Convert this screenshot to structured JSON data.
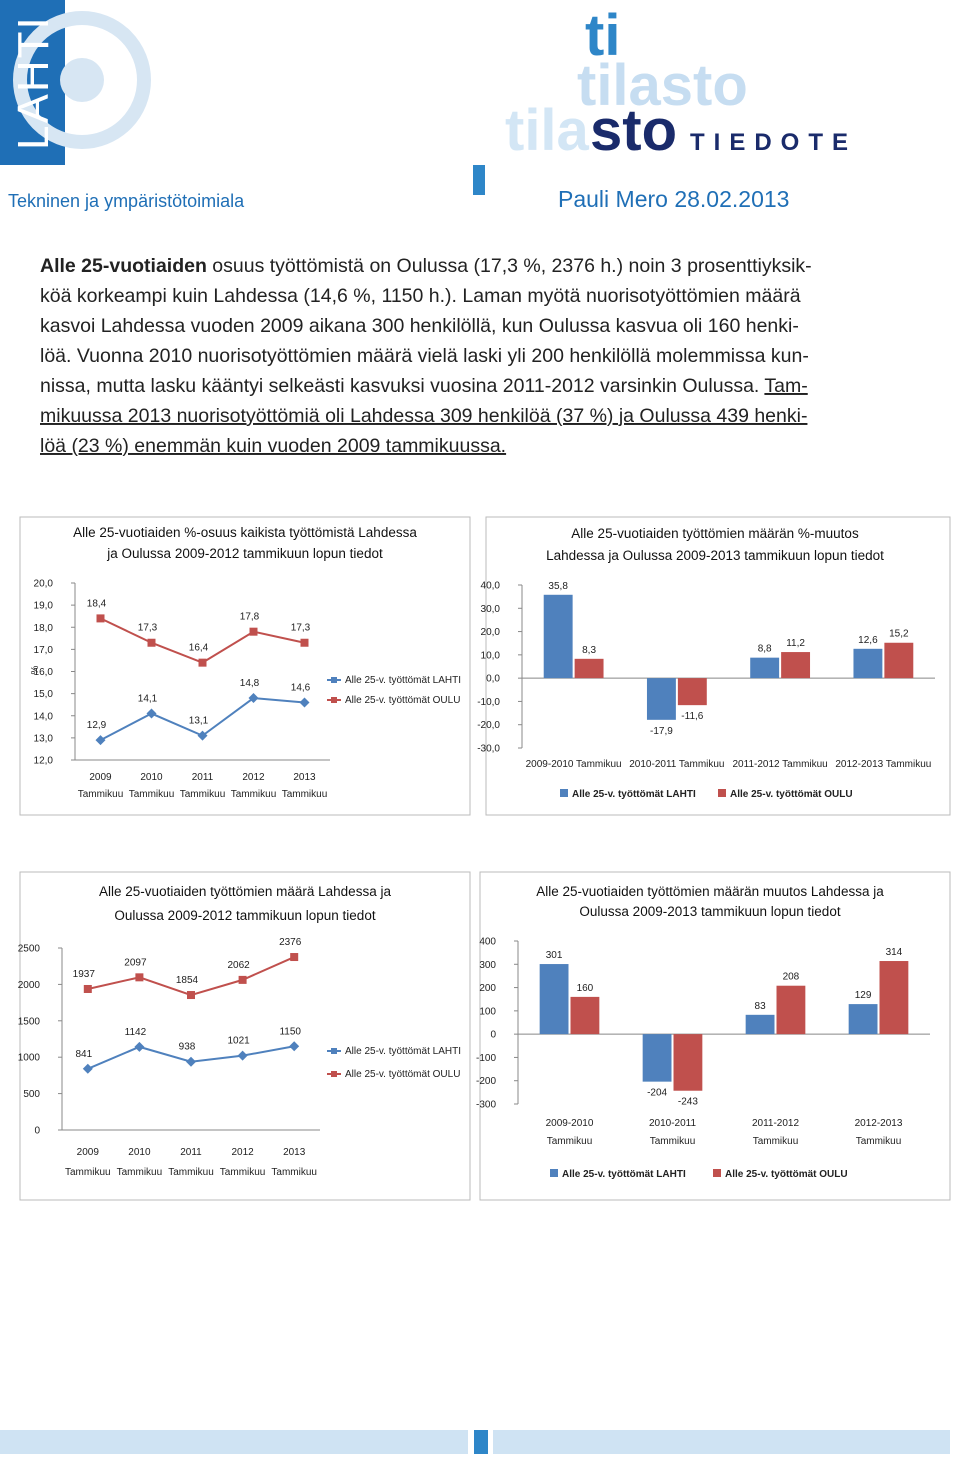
{
  "header": {
    "logo": "LAHTI",
    "brand_words": [
      "ti",
      "tilasto",
      "tila",
      "sto"
    ],
    "product": "TIEDOTE",
    "department": "Tekninen ja ympäristötoimiala",
    "author_date": "Pauli Mero 28.02.2013"
  },
  "body": {
    "lines": [
      [
        {
          "text": "Alle 25-vuotiaiden",
          "style": "bold"
        },
        {
          "text": " osuus työttömistä on Oulussa (17,3 %, 2376 h.) noin 3 prosenttiyksik-"
        }
      ],
      [
        {
          "text": "köä korkeampi kuin Lahdessa (14,6 %, 1150 h.). Laman myötä nuorisotyöttömien määrä"
        }
      ],
      [
        {
          "text": "kasvoi Lahdessa vuoden 2009 aikana 300 henkilöllä, kun Oulussa kasvua oli 160 henki-"
        }
      ],
      [
        {
          "text": "löä. Vuonna 2010 nuorisotyöttömien määrä vielä laski yli 200 henkilöllä molemmissa kun-"
        }
      ],
      [
        {
          "text": "nissa, mutta lasku kääntyi selkeästi kasvuksi vuosina 2011-2012 varsinkin Oulussa. "
        },
        {
          "text": "Tam-",
          "style": "underline"
        }
      ],
      [
        {
          "text": "mikuussa 2013 nuorisotyöttömiä oli Lahdessa 309 henkilöä (37 %) ja Oulussa 439 henki-",
          "style": "underline"
        }
      ],
      [
        {
          "text": "löä (23 %) enemmän kuin vuoden 2009 tammikuussa.",
          "style": "underline"
        }
      ]
    ]
  },
  "chart_data": [
    {
      "type": "line",
      "title": [
        "Alle 25-vuotiaiden %-osuus kaikista työttömistä Lahdessa",
        "ja Oulussa 2009-2012 tammikuun lopun tiedot"
      ],
      "ylabel": "%",
      "categories": [
        [
          "2009",
          "Tammikuu"
        ],
        [
          "2010",
          "Tammikuu"
        ],
        [
          "2011",
          "Tammikuu"
        ],
        [
          "2012",
          "Tammikuu"
        ],
        [
          "2013",
          "Tammikuu"
        ]
      ],
      "series": [
        {
          "name": "Alle 25-v. työttömät LAHTI",
          "color": "#4f81bd",
          "marker": "diamond",
          "values": [
            12.9,
            14.1,
            13.1,
            14.8,
            14.6
          ],
          "value_labels": [
            "12,9",
            "14,1",
            "13,1",
            "14,8",
            "14,6"
          ]
        },
        {
          "name": "Alle 25-v. työttömät OULU",
          "color": "#c0504d",
          "marker": "square",
          "values": [
            18.4,
            17.3,
            16.4,
            17.8,
            17.3
          ],
          "value_labels": [
            "18,4",
            "17,3",
            "16,4",
            "17,8",
            "17,3"
          ]
        }
      ],
      "ylim": [
        12,
        20
      ],
      "yticks": [
        {
          "value": 12,
          "label": "12,0"
        },
        {
          "value": 13,
          "label": "13,0"
        },
        {
          "value": 14,
          "label": "14,0"
        },
        {
          "value": 15,
          "label": "15,0"
        },
        {
          "value": 16,
          "label": "16,0"
        },
        {
          "value": 17,
          "label": "17,0"
        },
        {
          "value": 18,
          "label": "18,0"
        },
        {
          "value": 19,
          "label": "19,0"
        },
        {
          "value": 20,
          "label": "20,0"
        }
      ],
      "legend": "right",
      "grid": false
    },
    {
      "type": "bar",
      "title": [
        "Alle 25-vuotiaiden työttömien määrän %-muutos",
        "Lahdessa ja Oulussa 2009-2013 tammikuun lopun tiedot"
      ],
      "categories": [
        [
          "2009-2010 Tammikuu"
        ],
        [
          "2010-2011 Tammikuu"
        ],
        [
          "2011-2012 Tammikuu"
        ],
        [
          "2012-2013 Tammikuu"
        ]
      ],
      "series": [
        {
          "name": "Alle 25-v. työttömät LAHTI",
          "color": "#4f81bd",
          "values": [
            35.8,
            -17.9,
            8.8,
            12.6
          ],
          "value_labels": [
            "35,8",
            "-17,9",
            "8,8",
            "12,6"
          ]
        },
        {
          "name": "Alle 25-v. työttömät OULU",
          "color": "#c0504d",
          "values": [
            8.3,
            -11.6,
            11.2,
            15.2
          ],
          "value_labels": [
            "8,3",
            "-11,6",
            "11,2",
            "15,2"
          ]
        }
      ],
      "ylim": [
        -30,
        40
      ],
      "yticks": [
        {
          "value": -30,
          "label": "-30,0"
        },
        {
          "value": -20,
          "label": "-20,0"
        },
        {
          "value": -10,
          "label": "-10,0"
        },
        {
          "value": 0,
          "label": "0,0"
        },
        {
          "value": 10,
          "label": "10,0"
        },
        {
          "value": 20,
          "label": "20,0"
        },
        {
          "value": 30,
          "label": "30,0"
        },
        {
          "value": 40,
          "label": "40,0"
        }
      ],
      "legend": "bottom",
      "grid": false
    },
    {
      "type": "line",
      "title": [
        "Alle 25-vuotiaiden työttömien määrä Lahdessa ja",
        "Oulussa 2009-2012 tammikuun lopun tiedot"
      ],
      "categories": [
        [
          "2009",
          "Tammikuu"
        ],
        [
          "2010",
          "Tammikuu"
        ],
        [
          "2011",
          "Tammikuu"
        ],
        [
          "2012",
          "Tammikuu"
        ],
        [
          "2013",
          "Tammikuu"
        ]
      ],
      "series": [
        {
          "name": "Alle 25-v. työttömät LAHTI",
          "color": "#4f81bd",
          "marker": "diamond",
          "values": [
            841,
            1142,
            938,
            1021,
            1150
          ]
        },
        {
          "name": "Alle 25-v. työttömät OULU",
          "color": "#c0504d",
          "marker": "square",
          "values": [
            1937,
            2097,
            1854,
            2062,
            2376
          ]
        }
      ],
      "ylim": [
        0,
        2500
      ],
      "yticks": [
        0,
        500,
        1000,
        1500,
        2000,
        2500
      ],
      "legend": "right",
      "grid": false
    },
    {
      "type": "bar",
      "title": [
        "Alle 25-vuotiaiden työttömien määrän muutos Lahdessa ja",
        "Oulussa 2009-2013 tammikuun lopun tiedot"
      ],
      "categories": [
        [
          "2009-2010",
          "Tammikuu"
        ],
        [
          "2010-2011",
          "Tammikuu"
        ],
        [
          "2011-2012",
          "Tammikuu"
        ],
        [
          "2012-2013",
          "Tammikuu"
        ]
      ],
      "series": [
        {
          "name": "Alle 25-v. työttömät LAHTI",
          "color": "#4f81bd",
          "values": [
            301,
            -204,
            83,
            129
          ]
        },
        {
          "name": "Alle 25-v. työttömät OULU",
          "color": "#c0504d",
          "values": [
            160,
            -243,
            208,
            314
          ]
        }
      ],
      "ylim": [
        -300,
        400
      ],
      "yticks": [
        -300,
        -200,
        -100,
        0,
        100,
        200,
        300,
        400
      ],
      "legend": "bottom",
      "grid": false
    }
  ]
}
